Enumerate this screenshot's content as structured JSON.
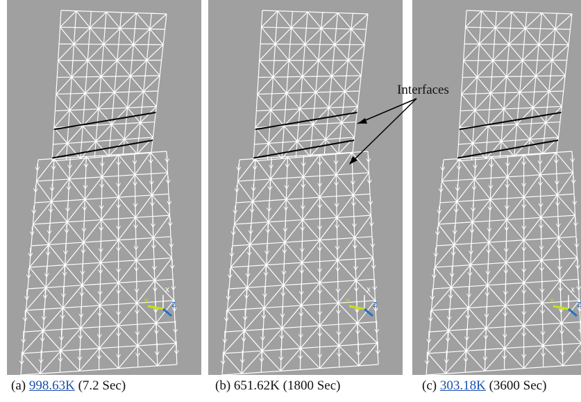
{
  "panels": [
    {
      "caption_prefix": "(a)",
      "temperature": "998.63K",
      "time": "(7.2 Sec)"
    },
    {
      "caption_prefix": "(b)",
      "temperature": "651.62K",
      "time": "(1800 Sec)"
    },
    {
      "caption_prefix": "(c)",
      "temperature": "303.18K",
      "time": "(3600 Sec)"
    }
  ],
  "annotation": "Interfaces",
  "axis_labels": {
    "x": "X",
    "y": "Y",
    "z": "Z"
  }
}
